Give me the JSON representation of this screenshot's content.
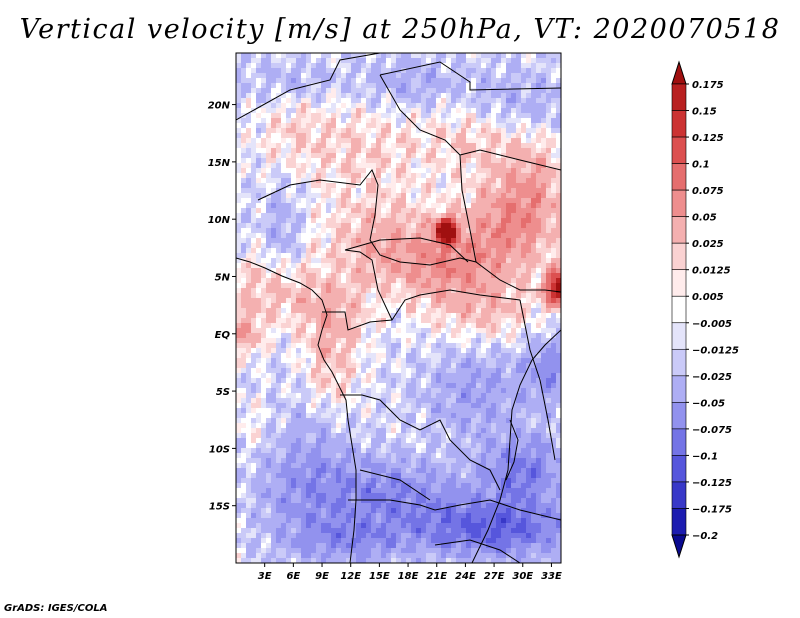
{
  "chart_data": {
    "type": "heatmap",
    "title": "Vertical velocity [m/s] at 250hPa, VT: 2020070518",
    "xlabel": "",
    "ylabel": "",
    "variable": "Vertical velocity",
    "units": "m/s",
    "level": "250hPa",
    "valid_time": "2020070518",
    "xlim": [
      0,
      34
    ],
    "ylim": [
      -20,
      24.5
    ],
    "x_ticks": [
      3,
      6,
      9,
      12,
      15,
      18,
      21,
      24,
      27,
      30,
      33
    ],
    "x_tick_labels": [
      "3E",
      "6E",
      "9E",
      "12E",
      "15E",
      "18E",
      "21E",
      "24E",
      "27E",
      "30E",
      "33E"
    ],
    "y_ticks": [
      20,
      15,
      10,
      5,
      0,
      -5,
      -10,
      -15
    ],
    "y_tick_labels": [
      "20N",
      "15N",
      "10N",
      "5N",
      "EQ",
      "5S",
      "10S",
      "15S"
    ],
    "colorbar": {
      "levels": [
        0.175,
        0.15,
        0.125,
        0.1,
        0.075,
        0.05,
        0.025,
        0.0125,
        0.005,
        -0.005,
        -0.0125,
        -0.025,
        -0.05,
        -0.075,
        -0.1,
        -0.125,
        -0.175,
        -0.2
      ],
      "labels": [
        "0.175",
        "0.15",
        "0.125",
        "0.1",
        "0.075",
        "0.05",
        "0.025",
        "0.0125",
        "0.005",
        "−0.005",
        "−0.0125",
        "−0.025",
        "−0.05",
        "−0.075",
        "−0.1",
        "−0.125",
        "−0.175",
        "−0.2"
      ],
      "colors": [
        "#a01010",
        "#b82020",
        "#cc3333",
        "#dc5050",
        "#e56e6e",
        "#ee8e8e",
        "#f4b0b0",
        "#fad2d2",
        "#ffecec",
        "#ffffff",
        "#e4e4fa",
        "#cacaf8",
        "#aeaef4",
        "#9292ee",
        "#7474e6",
        "#5656dc",
        "#3838c8",
        "#1c1cb0",
        "#0a0a90"
      ]
    },
    "field_summary": "positive (upward) values over Sahel, Central African Republic, Congo basin and Sudan/Ethiopia; negative (downward) values over southern Africa and the Sahara; strongest positive near 22E 9N and 34E 4N"
  },
  "credit": "GrADS: IGES/COLA"
}
